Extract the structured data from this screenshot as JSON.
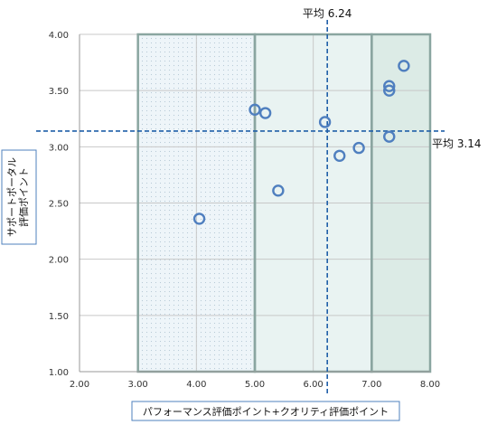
{
  "chart_data": {
    "type": "scatter",
    "xlabel": "パフォーマンス評価ポイント+クオリティ評価ポイント",
    "ylabel": [
      "サポートポータル",
      "評価ポイント"
    ],
    "xlim": [
      2.0,
      8.0
    ],
    "ylim": [
      1.0,
      4.0
    ],
    "x_ticks": [
      2.0,
      3.0,
      4.0,
      5.0,
      6.0,
      7.0,
      8.0
    ],
    "y_ticks": [
      1.0,
      1.5,
      2.0,
      2.5,
      3.0,
      3.5,
      4.0
    ],
    "x_tick_labels": [
      "2.00",
      "3.00",
      "4.00",
      "5.00",
      "6.00",
      "7.00",
      "8.00"
    ],
    "y_tick_labels": [
      "1.00",
      "1.50",
      "2.00",
      "2.50",
      "3.00",
      "3.50",
      "4.00"
    ],
    "grid": true,
    "average_x": {
      "value": 6.24,
      "label": "平均 6.24"
    },
    "average_y": {
      "value": 3.14,
      "label": "平均 3.14"
    },
    "zones": [
      {
        "x_from": 3.0,
        "x_to": 5.0,
        "color": "#eef5f9",
        "pattern": "dots"
      },
      {
        "x_from": 5.0,
        "x_to": 7.0,
        "color": "#e9f3f2",
        "pattern": "none"
      },
      {
        "x_from": 7.0,
        "x_to": 8.0,
        "color": "#dcebe6",
        "pattern": "none"
      }
    ],
    "points": [
      {
        "x": 4.05,
        "y": 2.36
      },
      {
        "x": 5.0,
        "y": 3.33
      },
      {
        "x": 5.18,
        "y": 3.3
      },
      {
        "x": 5.4,
        "y": 2.61
      },
      {
        "x": 6.2,
        "y": 3.22
      },
      {
        "x": 6.45,
        "y": 2.92
      },
      {
        "x": 6.78,
        "y": 2.99
      },
      {
        "x": 7.3,
        "y": 3.09
      },
      {
        "x": 7.3,
        "y": 3.5
      },
      {
        "x": 7.3,
        "y": 3.54
      },
      {
        "x": 7.55,
        "y": 3.72
      }
    ],
    "colors": {
      "marker": "#4f7fbf",
      "average_line": "#1f5fa8",
      "grid": "#c8c8c8",
      "zone_border": "#8aa5a0",
      "label_box_border": "#4f81bd"
    }
  }
}
